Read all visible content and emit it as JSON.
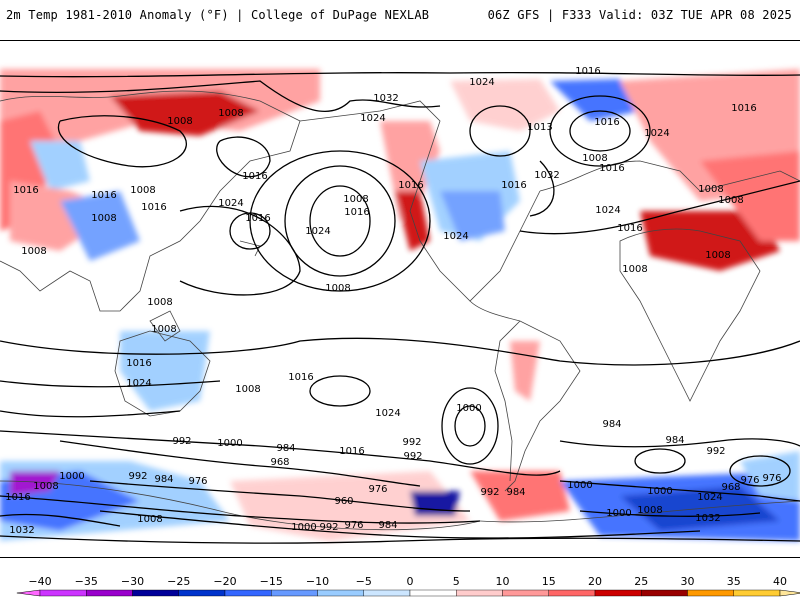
{
  "header": {
    "left": "2m Temp 1981-2010 Anomaly (°F) | College of DuPage NEXLAB",
    "right": "06Z GFS | F333 Valid: 03Z TUE APR 08 2025"
  },
  "colors": {
    "ocean": "#ffffff",
    "contour": "#000000",
    "coast": "#444444"
  },
  "colorbar": {
    "labels": [
      "-40",
      "-35",
      "-30",
      "-25",
      "-20",
      "-15",
      "-10",
      "-5",
      "0",
      "5",
      "10",
      "15",
      "20",
      "25",
      "30",
      "35",
      "40"
    ],
    "colors": [
      "#ff66ff",
      "#cc33ff",
      "#9900cc",
      "#000099",
      "#0033cc",
      "#3366ff",
      "#6699ff",
      "#99ccff",
      "#cce6ff",
      "#ffffff",
      "#ffcccc",
      "#ff9999",
      "#ff6666",
      "#cc0000",
      "#990000",
      "#ff9900",
      "#ffcc33",
      "#ffe699"
    ]
  },
  "isobar_labels": [
    "1016",
    "1024",
    "1008",
    "1032",
    "1013",
    "1016",
    "1008",
    "1024",
    "1016",
    "1032",
    "1008",
    "1016",
    "1024",
    "1016",
    "1008",
    "1016",
    "1024",
    "1008",
    "1016",
    "1008",
    "1016",
    "1024",
    "1016",
    "1008",
    "1016",
    "1008",
    "1008",
    "1016",
    "1008",
    "1008",
    "1016",
    "1024",
    "1016",
    "1008",
    "1024",
    "1008",
    "1008",
    "1024",
    "1016",
    "992",
    "1000",
    "984",
    "968",
    "1016",
    "1024",
    "1008",
    "1000",
    "992",
    "1016",
    "976",
    "960",
    "992",
    "984",
    "1000",
    "992",
    "1000",
    "984",
    "992",
    "976",
    "968",
    "1000",
    "1008",
    "1024",
    "1032",
    "984",
    "976",
    "1000",
    "1016",
    "1008",
    "1032",
    "1008",
    "976",
    "984",
    "992",
    "1000",
    "992",
    "976",
    "984"
  ]
}
